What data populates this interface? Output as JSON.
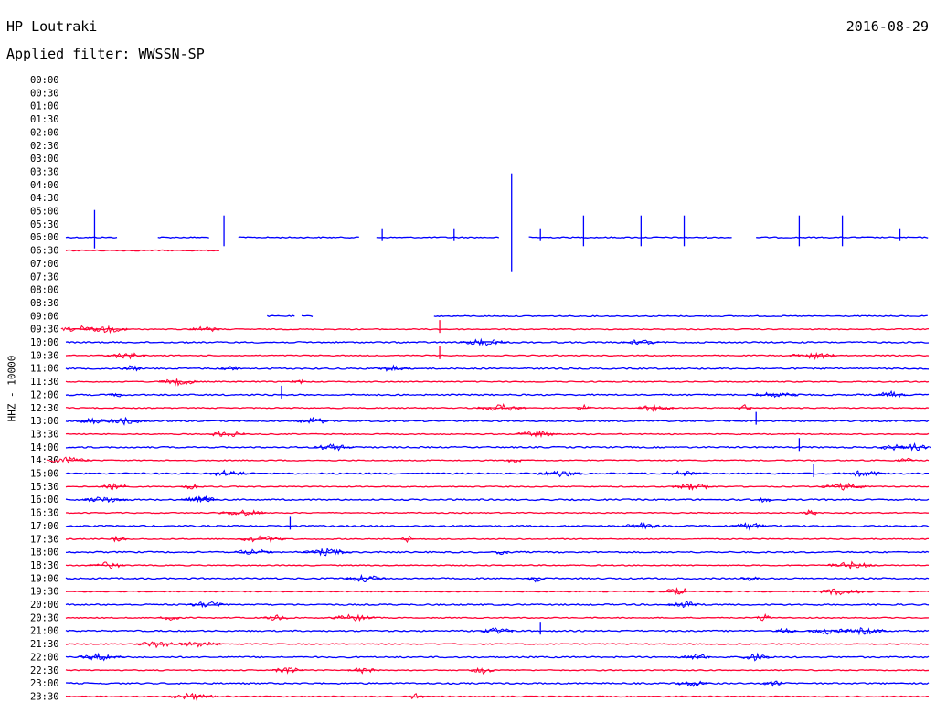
{
  "header": {
    "station": "HP Loutraki",
    "date": "2016-08-29",
    "filter_label": "Applied filter: WWSSN-SP"
  },
  "chart_data": {
    "type": "line",
    "title": "HP Loutraki",
    "subtitle": "Applied filter: WWSSN-SP",
    "ylabel": "HHZ - 10000",
    "xlabel": "",
    "grid": false,
    "legend": "none",
    "colors": {
      "even_hour": "#0000ff",
      "half_hour": "#ff0033"
    },
    "rows": [
      "00:00",
      "00:30",
      "01:00",
      "01:30",
      "02:00",
      "02:30",
      "03:00",
      "03:30",
      "04:00",
      "04:30",
      "05:00",
      "05:30",
      "06:00",
      "06:30",
      "07:00",
      "07:30",
      "08:00",
      "08:30",
      "09:00",
      "09:30",
      "10:00",
      "10:30",
      "11:00",
      "11:30",
      "12:00",
      "12:30",
      "13:00",
      "13:30",
      "14:00",
      "14:30",
      "15:00",
      "15:30",
      "16:00",
      "16:30",
      "17:00",
      "17:30",
      "18:00",
      "18:30",
      "19:00",
      "19:30",
      "20:00",
      "20:30",
      "21:00",
      "21:30",
      "22:00",
      "22:30",
      "23:00",
      "23:30"
    ],
    "row_minutes": 30,
    "notes": "Each row is a 30-minute helicorder trace; blue rows start on the hour, red rows on the half hour.",
    "events": [
      {
        "row": "06:00",
        "minute": 15.5,
        "amplitude": "very large"
      },
      {
        "row": "06:00",
        "minute": 1.0,
        "amplitude": "large"
      },
      {
        "row": "06:00",
        "minute": 5.5,
        "amplitude": "medium"
      },
      {
        "row": "06:00",
        "minute": 13.5,
        "amplitude": "small"
      },
      {
        "row": "06:00",
        "minute": 25.5,
        "amplitude": "medium"
      },
      {
        "row": "06:00",
        "minute": 11.0,
        "amplitude": "small"
      },
      {
        "row": "06:00",
        "minute": 20.0,
        "amplitude": "medium"
      },
      {
        "row": "06:00",
        "minute": 21.5,
        "amplitude": "medium"
      },
      {
        "row": "06:00",
        "minute": 18.0,
        "amplitude": "medium"
      },
      {
        "row": "06:00",
        "minute": 16.5,
        "amplitude": "small"
      },
      {
        "row": "06:00",
        "minute": 29.0,
        "amplitude": "small"
      },
      {
        "row": "06:00",
        "minute": 27.0,
        "amplitude": "medium"
      },
      {
        "row": "09:30",
        "minute": 13.0,
        "amplitude": "small"
      },
      {
        "row": "10:30",
        "minute": 13.0,
        "amplitude": "small"
      },
      {
        "row": "12:00",
        "minute": 7.5,
        "amplitude": "small"
      },
      {
        "row": "13:00",
        "minute": 24.0,
        "amplitude": "small"
      },
      {
        "row": "14:00",
        "minute": 25.5,
        "amplitude": "small"
      },
      {
        "row": "15:00",
        "minute": 26.0,
        "amplitude": "small"
      },
      {
        "row": "17:00",
        "minute": 7.8,
        "amplitude": "small"
      },
      {
        "row": "21:00",
        "minute": 16.5,
        "amplitude": "small"
      }
    ]
  }
}
